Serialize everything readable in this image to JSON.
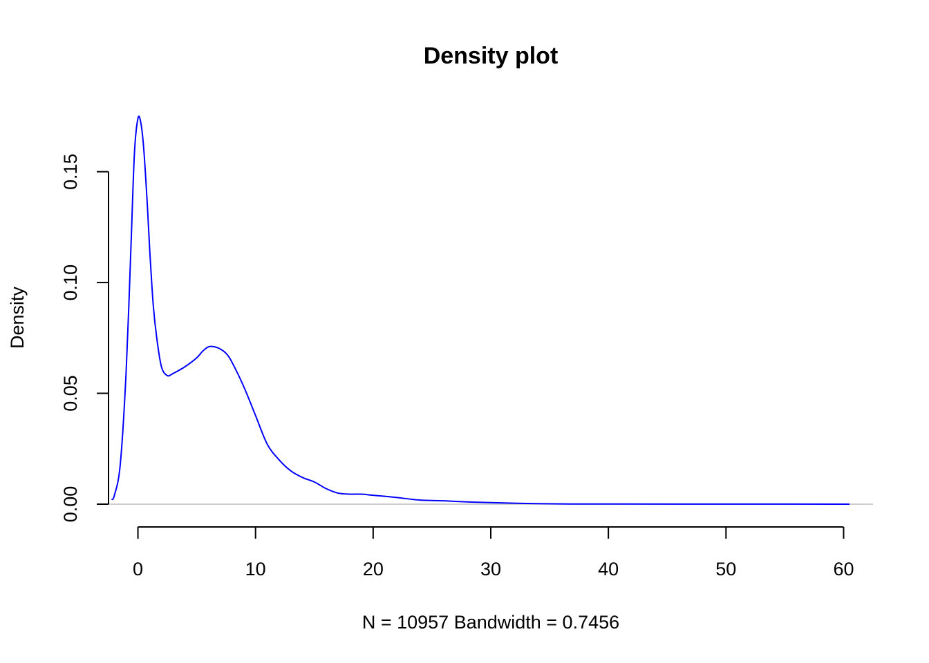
{
  "chart_data": {
    "type": "line",
    "title": "Density plot",
    "xlabel": "N = 10957   Bandwidth = 0.7456",
    "ylabel": "Density",
    "xlim": [
      -2.5,
      62.5
    ],
    "ylim": [
      -0.005,
      0.177
    ],
    "x_ticks": [
      0,
      10,
      20,
      30,
      40,
      50,
      60
    ],
    "x_tick_labels": [
      "0",
      "10",
      "20",
      "30",
      "40",
      "50",
      "60"
    ],
    "y_ticks": [
      0.0,
      0.05,
      0.1,
      0.15
    ],
    "y_tick_labels": [
      "0.00",
      "0.05",
      "0.10",
      "0.15"
    ],
    "grid": false,
    "baseline": 0,
    "series": [
      {
        "color": "#0000ff",
        "x": [
          -2.24,
          -2.0,
          -1.5,
          -1.0,
          -0.6,
          -0.3,
          0.0,
          0.25,
          0.5,
          0.8,
          1.0,
          1.3,
          1.6,
          2.0,
          2.5,
          3.0,
          4.0,
          5.0,
          5.5,
          6.0,
          6.5,
          7.0,
          7.5,
          8.0,
          9.0,
          10.0,
          11.0,
          12.0,
          13.0,
          14.0,
          15.0,
          16.0,
          17.0,
          18.0,
          19.0,
          20.0,
          22.0,
          24.0,
          26.0,
          28.0,
          30.0,
          33.0,
          36.0,
          40.0,
          50.0,
          60.5
        ],
        "y": [
          0.002,
          0.004,
          0.018,
          0.06,
          0.115,
          0.158,
          0.174,
          0.172,
          0.16,
          0.135,
          0.115,
          0.09,
          0.075,
          0.062,
          0.058,
          0.059,
          0.062,
          0.066,
          0.069,
          0.071,
          0.071,
          0.07,
          0.068,
          0.064,
          0.053,
          0.04,
          0.027,
          0.02,
          0.015,
          0.012,
          0.01,
          0.007,
          0.005,
          0.0045,
          0.0045,
          0.004,
          0.003,
          0.0018,
          0.0015,
          0.001,
          0.0007,
          0.0003,
          0.0001,
          5e-05,
          2e-05,
          0.0
        ]
      }
    ]
  }
}
